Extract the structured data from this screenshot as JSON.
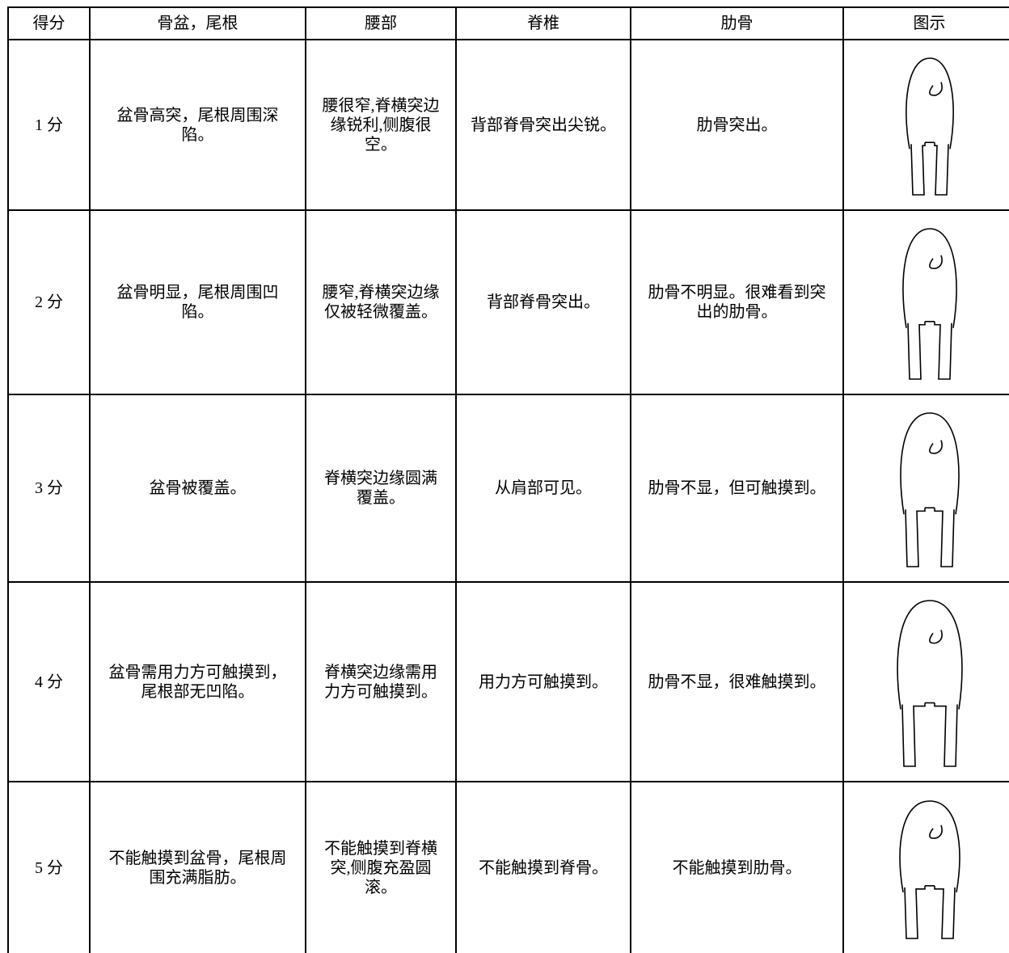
{
  "table": {
    "header": [
      "得分",
      "骨盆，尾根",
      "腰部",
      "脊椎",
      "肋骨",
      "图示"
    ],
    "rows": [
      [
        "1 分",
        "盆骨高突，尾根周围深陷。",
        "腰很窄,脊横突边缘锐利,侧腹很空。",
        "背部脊骨突出尖锐。",
        "肋骨突出。"
      ],
      [
        "2 分",
        "盆骨明显，尾根周围凹陷。",
        "腰窄,脊横突边缘仅被轻微覆盖。",
        "背部脊骨突出。",
        "肋骨不明显。很难看到突出的肋骨。"
      ],
      [
        "3 分",
        "盆骨被覆盖。",
        "脊横突边缘圆满覆盖。",
        "从肩部可见。",
        "肋骨不显，但可触摸到。"
      ],
      [
        "4 分",
        "盆骨需用力方可触摸到，尾根部无凹陷。",
        "脊横突边缘需用力方可触摸到。",
        "用力方可触摸到。",
        "肋骨不显，很难触摸到。"
      ],
      [
        "5 分",
        "不能触摸到盆骨，尾根周围充满脂肪。",
        "不能触摸到脊横突,侧腹充盈圆滚。",
        "不能触摸到脊骨。",
        "不能触摸到肋骨。"
      ]
    ]
  }
}
